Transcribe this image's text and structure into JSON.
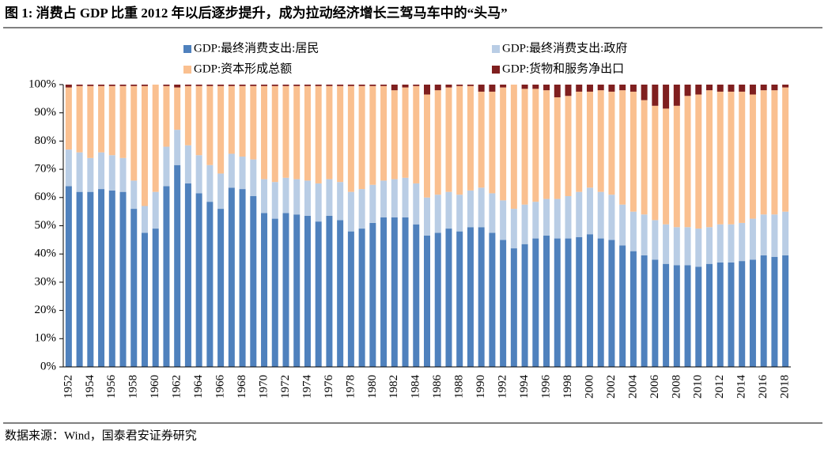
{
  "chart_data": {
    "type": "stacked_bar",
    "title": "图 1:  消费占 GDP 比重 2012 年以后逐步提升，成为拉动经济增长三驾马车中的“头马”",
    "source": "数据来源：Wind，国泰君安证券研究",
    "categories": [
      "1952",
      null,
      "1954",
      null,
      "1956",
      null,
      "1958",
      null,
      "1960",
      null,
      "1962",
      null,
      "1964",
      null,
      "1966",
      null,
      "1968",
      null,
      "1970",
      null,
      "1972",
      null,
      "1974",
      null,
      "1976",
      null,
      "1978",
      null,
      "1980",
      null,
      "1982",
      null,
      "1984",
      null,
      "1986",
      null,
      "1988",
      null,
      "1990",
      null,
      "1992",
      null,
      "1994",
      null,
      "1996",
      null,
      "1998",
      null,
      "2000",
      null,
      "2002",
      null,
      "2004",
      null,
      "2006",
      null,
      "2008",
      null,
      "2010",
      null,
      "2012",
      null,
      "2014",
      null,
      "2016",
      null,
      "2018"
    ],
    "series": [
      {
        "name": "GDP:最终消费支出:居民",
        "color": "#4f81bd",
        "values": [
          64,
          62,
          62,
          63,
          62.5,
          62,
          56,
          47.5,
          49,
          64,
          71.5,
          65,
          61.5,
          58.5,
          56,
          63.5,
          63,
          60.5,
          54.5,
          52.5,
          54.5,
          54,
          53.5,
          51.5,
          53.5,
          52,
          48,
          49,
          51,
          53,
          53,
          53,
          50.5,
          46.5,
          47.5,
          49,
          48,
          49.5,
          49.5,
          47.5,
          45,
          42,
          43.5,
          45.5,
          46.5,
          45.5,
          45.5,
          46,
          47,
          45.5,
          45,
          43,
          41,
          39.5,
          38,
          36.5,
          36,
          36,
          35.5,
          36.5,
          37,
          37,
          37.5,
          38,
          39.5,
          39,
          39.5
        ]
      },
      {
        "name": "GDP:最终消费支出:政府",
        "color": "#b9cde5",
        "values": [
          13,
          14,
          12,
          13,
          12.5,
          12,
          10,
          9.5,
          13,
          14,
          12.5,
          13.5,
          13.5,
          13,
          12.5,
          12,
          11.5,
          13,
          12,
          13,
          12.5,
          12.5,
          12.5,
          13.5,
          13,
          13.5,
          14,
          14,
          13.5,
          13,
          13.5,
          14,
          14.5,
          13.5,
          13.5,
          13,
          13,
          13,
          14,
          14,
          14,
          14,
          14,
          13,
          13,
          14,
          15,
          16,
          16.5,
          16.5,
          16,
          14.5,
          14,
          14.5,
          14,
          14,
          13.5,
          13.5,
          13.5,
          13,
          13.5,
          13.5,
          13.5,
          14.5,
          14.5,
          15,
          15.5
        ]
      },
      {
        "name": "GDP:资本形成总额",
        "color": "#fac090",
        "values": [
          22,
          23.5,
          25.5,
          23.5,
          24.5,
          25.5,
          33.5,
          42.5,
          38,
          21.5,
          15,
          21,
          24.5,
          28,
          31,
          24,
          25,
          26,
          33,
          34,
          32.5,
          33,
          33.5,
          34.5,
          33,
          34,
          37.5,
          36.5,
          35,
          33.5,
          31.5,
          32,
          34.5,
          36.5,
          37,
          37,
          38.5,
          37,
          34,
          36,
          40,
          44,
          41,
          40,
          38.5,
          36,
          35.5,
          35.5,
          34,
          36,
          36.5,
          40.5,
          42.5,
          40.5,
          40.5,
          41,
          43,
          46.5,
          47.5,
          48.5,
          47,
          47,
          46.5,
          44,
          44,
          44,
          44
        ]
      },
      {
        "name": "GDP:货物和服务净出口",
        "color": "#7f1f1f",
        "values": [
          1,
          0.5,
          0.5,
          0.5,
          0.5,
          0.5,
          0.5,
          0.5,
          0,
          0.5,
          1,
          0.5,
          0.5,
          0.5,
          0.5,
          0.5,
          0.5,
          0.5,
          0.5,
          0.5,
          0.5,
          0.5,
          0.5,
          0.5,
          0.5,
          0.5,
          0.5,
          0.5,
          0.5,
          0.5,
          2,
          1,
          0.5,
          3.5,
          2,
          1,
          0.5,
          0.5,
          2.5,
          2.5,
          1,
          0,
          1.5,
          1.5,
          2,
          4.5,
          4,
          2.5,
          2.5,
          2,
          2.5,
          2,
          2.5,
          5.5,
          7.5,
          8.5,
          7.5,
          4,
          3.5,
          2,
          2.5,
          2.5,
          2.5,
          3.5,
          2,
          2,
          1
        ]
      }
    ],
    "ylim": [
      0,
      100
    ],
    "yticks": [
      {
        "value": 0,
        "label": "0%"
      },
      {
        "value": 10,
        "label": "10%"
      },
      {
        "value": 20,
        "label": "20%"
      },
      {
        "value": 30,
        "label": "30%"
      },
      {
        "value": 40,
        "label": "40%"
      },
      {
        "value": 50,
        "label": "50%"
      },
      {
        "value": 60,
        "label": "60%"
      },
      {
        "value": 70,
        "label": "70%"
      },
      {
        "value": 80,
        "label": "80%"
      },
      {
        "value": 90,
        "label": "90%"
      },
      {
        "value": 100,
        "label": "100%"
      }
    ]
  }
}
